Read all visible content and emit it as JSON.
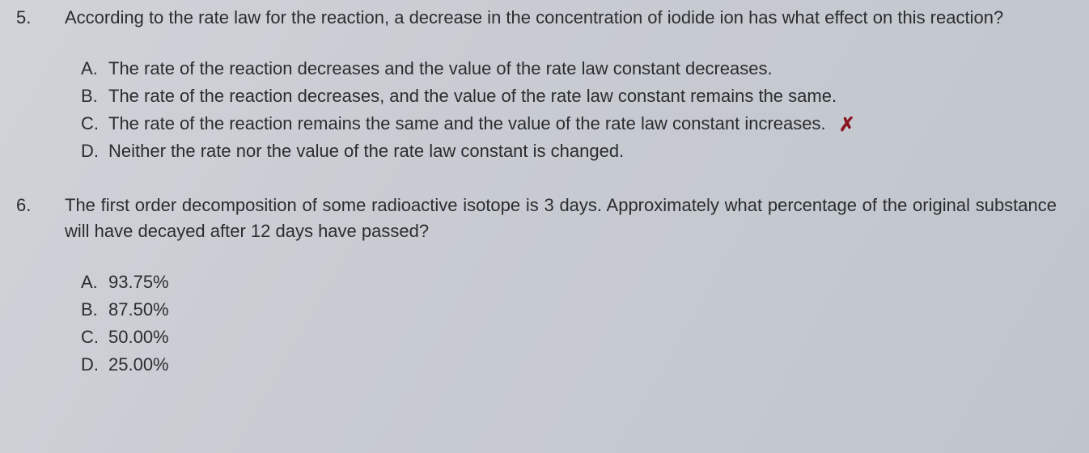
{
  "q5": {
    "number": "5.",
    "stem": "According to the rate law for the reaction, a decrease in the concentration of iodide ion has what effect on this reaction?",
    "options": {
      "A": {
        "letter": "A.",
        "text": "The rate of the reaction decreases and the value of the rate law constant decreases."
      },
      "B": {
        "letter": "B.",
        "text": "The rate of the reaction decreases, and the value of the rate law constant remains the same."
      },
      "C": {
        "letter": "C.",
        "text": "The rate of the reaction remains the same and the value of the rate law constant increases.",
        "mark": "✗"
      },
      "D": {
        "letter": "D.",
        "text": "Neither the rate nor the value of the rate law constant is changed."
      }
    }
  },
  "q6": {
    "number": "6.",
    "stem": "The first order decomposition of some radioactive isotope is 3 days. Approximately what percentage of the original substance will have decayed after 12 days have passed?",
    "options": {
      "A": {
        "letter": "A.",
        "text": "93.75%"
      },
      "B": {
        "letter": "B.",
        "text": "87.50%"
      },
      "C": {
        "letter": "C.",
        "text": "50.00%"
      },
      "D": {
        "letter": "D.",
        "text": "25.00%"
      }
    }
  }
}
